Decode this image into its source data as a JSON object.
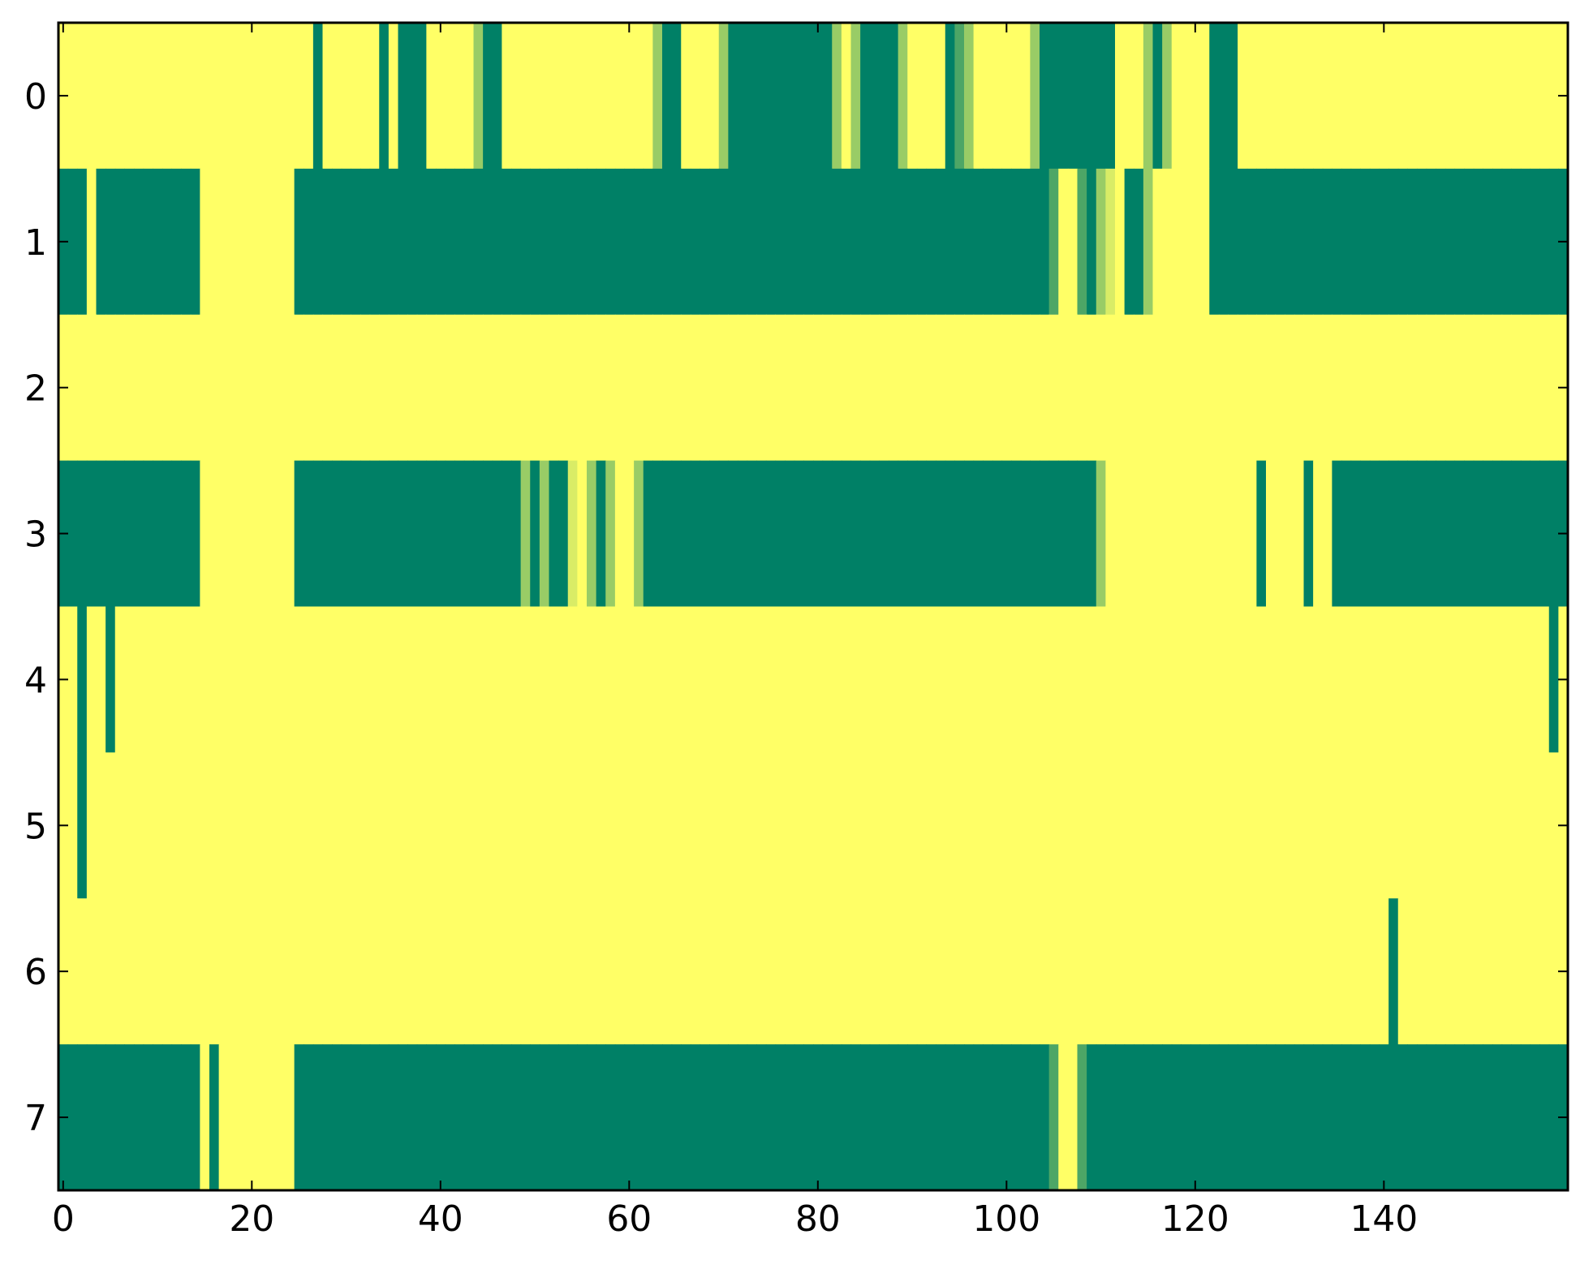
{
  "chart_data": {
    "type": "heatmap",
    "xlim": [
      -0.5,
      159.5
    ],
    "ylim": [
      7.5,
      -0.5
    ],
    "xticks": [
      0,
      20,
      40,
      60,
      80,
      100,
      120,
      140
    ],
    "yticks": [
      0,
      1,
      2,
      3,
      4,
      5,
      6,
      7
    ],
    "clim": [
      0,
      1
    ],
    "colormap": [
      "#008066",
      "#ffff66"
    ],
    "values": [
      [
        1,
        1,
        1,
        1,
        1,
        1,
        1,
        1,
        1,
        1,
        1,
        1,
        1,
        1,
        1,
        1,
        1,
        1,
        1,
        1,
        1,
        1,
        1,
        1,
        1,
        1,
        1,
        0,
        1,
        1,
        1,
        1,
        1,
        1,
        0,
        1,
        0,
        0,
        0,
        1,
        1,
        1,
        1,
        1,
        0.6,
        0,
        0,
        1,
        1,
        1,
        1,
        1,
        1,
        1,
        1,
        1,
        1,
        1,
        1,
        1,
        1,
        1,
        1,
        0.6,
        0,
        0,
        1,
        1,
        1,
        1,
        0.6,
        0,
        0,
        0,
        0,
        0,
        0,
        0,
        0,
        0,
        0,
        0,
        0.6,
        1,
        0.6,
        0,
        0,
        0,
        0,
        0.6,
        1,
        1,
        1,
        1,
        0,
        0.3,
        0.6,
        1,
        1,
        1,
        1,
        1,
        1,
        0.6,
        0,
        0,
        0,
        0,
        0,
        0,
        0,
        0,
        1,
        1,
        1,
        0.6,
        0,
        0.6,
        1,
        1,
        1,
        1,
        0,
        0,
        0,
        1,
        1,
        1,
        1,
        1,
        1,
        1,
        1,
        1,
        1,
        1,
        1,
        1,
        1,
        1,
        1,
        1,
        1,
        1,
        1,
        1,
        1,
        1,
        1,
        1,
        1,
        1,
        1,
        1,
        1,
        1,
        1,
        1,
        1,
        1
      ],
      [
        0,
        0,
        0,
        1,
        0,
        0,
        0,
        0,
        0,
        0,
        0,
        0,
        0,
        0,
        0,
        1,
        1,
        1,
        1,
        1,
        1,
        1,
        1,
        1,
        1,
        0,
        0,
        0,
        0,
        0,
        0,
        0,
        0,
        0,
        0,
        0,
        0,
        0,
        0,
        0,
        0,
        0,
        0,
        0,
        0,
        0,
        0,
        0,
        0,
        0,
        0,
        0,
        0,
        0,
        0,
        0,
        0,
        0,
        0,
        0,
        0,
        0,
        0,
        0,
        0,
        0,
        0,
        0,
        0,
        0,
        0,
        0,
        0,
        0,
        0,
        0,
        0,
        0,
        0,
        0,
        0,
        0,
        0,
        0,
        0,
        0,
        0,
        0,
        0,
        0,
        0,
        0,
        0,
        0,
        0,
        0,
        0,
        0,
        0,
        0,
        0,
        0,
        0,
        0,
        0,
        0.3,
        1,
        1,
        0.3,
        0,
        0.6,
        0.85,
        1,
        0,
        0,
        0.6,
        1,
        1,
        1,
        1,
        1,
        1,
        0,
        0,
        0,
        0,
        0,
        0,
        0,
        0,
        0,
        0,
        0,
        0,
        0,
        0,
        0,
        0,
        0,
        0,
        0,
        0,
        0,
        0,
        0,
        0,
        0,
        0,
        0,
        0,
        0,
        0,
        0,
        0,
        0,
        0,
        0,
        0,
        0,
        0
      ],
      [
        1,
        1,
        1,
        1,
        1,
        1,
        1,
        1,
        1,
        1,
        1,
        1,
        1,
        1,
        1,
        1,
        1,
        1,
        1,
        1,
        1,
        1,
        1,
        1,
        1,
        1,
        1,
        1,
        1,
        1,
        1,
        1,
        1,
        1,
        1,
        1,
        1,
        1,
        1,
        1,
        1,
        1,
        1,
        1,
        1,
        1,
        1,
        1,
        1,
        1,
        1,
        1,
        1,
        1,
        1,
        1,
        1,
        1,
        1,
        1,
        1,
        1,
        1,
        1,
        1,
        1,
        1,
        1,
        1,
        1,
        1,
        1,
        1,
        1,
        1,
        1,
        1,
        1,
        1,
        1,
        1,
        1,
        1,
        1,
        1,
        1,
        1,
        1,
        1,
        1,
        1,
        1,
        1,
        1,
        1,
        1,
        1,
        1,
        1,
        1,
        1,
        1,
        1,
        1,
        1,
        1,
        1,
        1,
        1,
        1,
        1,
        1,
        1,
        1,
        1,
        1,
        1,
        1,
        1,
        1,
        1,
        1,
        1,
        1,
        1,
        1,
        1,
        1,
        1,
        1,
        1,
        1,
        1,
        1,
        1,
        1,
        1,
        1,
        1,
        1,
        1,
        1,
        1,
        1,
        1,
        1,
        1,
        1,
        1,
        1,
        1,
        1,
        1,
        1,
        1,
        1,
        1,
        1,
        1,
        1
      ],
      [
        0,
        0,
        0,
        0,
        0,
        0,
        0,
        0,
        0,
        0,
        0,
        0,
        0,
        0,
        0,
        1,
        1,
        1,
        1,
        1,
        1,
        1,
        1,
        1,
        1,
        0,
        0,
        0,
        0,
        0,
        0,
        0,
        0,
        0,
        0,
        0,
        0,
        0,
        0,
        0,
        0,
        0,
        0,
        0,
        0,
        0,
        0,
        0,
        0,
        0.6,
        0,
        0.6,
        0,
        0,
        0.85,
        1,
        0.6,
        0,
        0.6,
        1,
        1,
        0.6,
        0,
        0,
        0,
        0,
        0,
        0,
        0,
        0,
        0,
        0,
        0,
        0,
        0,
        0,
        0,
        0,
        0,
        0,
        0,
        0,
        0,
        0,
        0,
        0,
        0,
        0,
        0,
        0,
        0,
        0,
        0,
        0,
        0,
        0,
        0,
        0,
        0,
        0,
        0,
        0,
        0,
        0,
        0,
        0,
        0,
        0,
        0,
        0,
        0.6,
        1,
        1,
        1,
        1,
        1,
        1,
        1,
        1,
        1,
        1,
        1,
        1,
        1,
        1,
        1,
        1,
        0,
        1,
        1,
        1,
        1,
        0,
        1,
        1,
        0,
        0,
        0,
        0,
        0,
        0,
        0,
        0,
        0,
        0,
        0,
        0,
        0,
        0,
        0,
        0,
        0,
        0,
        0,
        0,
        0,
        0,
        0,
        0,
        0
      ],
      [
        1,
        1,
        0,
        1,
        1,
        0,
        1,
        1,
        1,
        1,
        1,
        1,
        1,
        1,
        1,
        1,
        1,
        1,
        1,
        1,
        1,
        1,
        1,
        1,
        1,
        1,
        1,
        1,
        1,
        1,
        1,
        1,
        1,
        1,
        1,
        1,
        1,
        1,
        1,
        1,
        1,
        1,
        1,
        1,
        1,
        1,
        1,
        1,
        1,
        1,
        1,
        1,
        1,
        1,
        1,
        1,
        1,
        1,
        1,
        1,
        1,
        1,
        1,
        1,
        1,
        1,
        1,
        1,
        1,
        1,
        1,
        1,
        1,
        1,
        1,
        1,
        1,
        1,
        1,
        1,
        1,
        1,
        1,
        1,
        1,
        1,
        1,
        1,
        1,
        1,
        1,
        1,
        1,
        1,
        1,
        1,
        1,
        1,
        1,
        1,
        1,
        1,
        1,
        1,
        1,
        1,
        1,
        1,
        1,
        1,
        1,
        1,
        1,
        1,
        1,
        1,
        1,
        1,
        1,
        1,
        1,
        1,
        1,
        1,
        1,
        1,
        1,
        1,
        1,
        1,
        1,
        1,
        1,
        1,
        1,
        1,
        1,
        1,
        1,
        1,
        1,
        1,
        1,
        1,
        1,
        1,
        1,
        1,
        1,
        1,
        1,
        1,
        1,
        1,
        1,
        1,
        1,
        1,
        0,
        1
      ],
      [
        1,
        1,
        0,
        1,
        1,
        1,
        1,
        1,
        1,
        1,
        1,
        1,
        1,
        1,
        1,
        1,
        1,
        1,
        1,
        1,
        1,
        1,
        1,
        1,
        1,
        1,
        1,
        1,
        1,
        1,
        1,
        1,
        1,
        1,
        1,
        1,
        1,
        1,
        1,
        1,
        1,
        1,
        1,
        1,
        1,
        1,
        1,
        1,
        1,
        1,
        1,
        1,
        1,
        1,
        1,
        1,
        1,
        1,
        1,
        1,
        1,
        1,
        1,
        1,
        1,
        1,
        1,
        1,
        1,
        1,
        1,
        1,
        1,
        1,
        1,
        1,
        1,
        1,
        1,
        1,
        1,
        1,
        1,
        1,
        1,
        1,
        1,
        1,
        1,
        1,
        1,
        1,
        1,
        1,
        1,
        1,
        1,
        1,
        1,
        1,
        1,
        1,
        1,
        1,
        1,
        1,
        1,
        1,
        1,
        1,
        1,
        1,
        1,
        1,
        1,
        1,
        1,
        1,
        1,
        1,
        1,
        1,
        1,
        1,
        1,
        1,
        1,
        1,
        1,
        1,
        1,
        1,
        1,
        1,
        1,
        1,
        1,
        1,
        1,
        1,
        1,
        1,
        1,
        1,
        1,
        1,
        1,
        1,
        1,
        1,
        1,
        1,
        1,
        1,
        1,
        1,
        1,
        1,
        1,
        1
      ],
      [
        1,
        1,
        1,
        1,
        1,
        1,
        1,
        1,
        1,
        1,
        1,
        1,
        1,
        1,
        1,
        1,
        1,
        1,
        1,
        1,
        1,
        1,
        1,
        1,
        1,
        1,
        1,
        1,
        1,
        1,
        1,
        1,
        1,
        1,
        1,
        1,
        1,
        1,
        1,
        1,
        1,
        1,
        1,
        1,
        1,
        1,
        1,
        1,
        1,
        1,
        1,
        1,
        1,
        1,
        1,
        1,
        1,
        1,
        1,
        1,
        1,
        1,
        1,
        1,
        1,
        1,
        1,
        1,
        1,
        1,
        1,
        1,
        1,
        1,
        1,
        1,
        1,
        1,
        1,
        1,
        1,
        1,
        1,
        1,
        1,
        1,
        1,
        1,
        1,
        1,
        1,
        1,
        1,
        1,
        1,
        1,
        1,
        1,
        1,
        1,
        1,
        1,
        1,
        1,
        1,
        1,
        1,
        1,
        1,
        1,
        1,
        1,
        1,
        1,
        1,
        1,
        1,
        1,
        1,
        1,
        1,
        1,
        1,
        1,
        1,
        1,
        1,
        1,
        1,
        1,
        1,
        1,
        1,
        1,
        1,
        1,
        1,
        1,
        1,
        1,
        1,
        0,
        1,
        1,
        1,
        1,
        1,
        1,
        1,
        1,
        1,
        1,
        1,
        1,
        1,
        1,
        1,
        1,
        1,
        1
      ],
      [
        0,
        0,
        0,
        0,
        0,
        0,
        0,
        0,
        0,
        0,
        0,
        0,
        0,
        0,
        0,
        1,
        0,
        1,
        1,
        1,
        1,
        1,
        1,
        1,
        1,
        0,
        0,
        0,
        0,
        0,
        0,
        0,
        0,
        0,
        0,
        0,
        0,
        0,
        0,
        0,
        0,
        0,
        0,
        0,
        0,
        0,
        0,
        0,
        0,
        0,
        0,
        0,
        0,
        0,
        0,
        0,
        0,
        0,
        0,
        0,
        0,
        0,
        0,
        0,
        0,
        0,
        0,
        0,
        0,
        0,
        0,
        0,
        0,
        0,
        0,
        0,
        0,
        0,
        0,
        0,
        0,
        0,
        0,
        0,
        0,
        0,
        0,
        0,
        0,
        0,
        0,
        0,
        0,
        0,
        0,
        0,
        0,
        0,
        0,
        0,
        0,
        0,
        0,
        0,
        0,
        0.3,
        1,
        1,
        0.3,
        0,
        0,
        0,
        0,
        0,
        0,
        0,
        0,
        0,
        0,
        0,
        0,
        0,
        0,
        0,
        0,
        0,
        0,
        0,
        0,
        0,
        0,
        0,
        0,
        0,
        0,
        0,
        0,
        0,
        0,
        0,
        0,
        0,
        0,
        0,
        0,
        0,
        0,
        0,
        0,
        0,
        0,
        0,
        0,
        0,
        0,
        0,
        0,
        0,
        0,
        0
      ]
    ]
  }
}
